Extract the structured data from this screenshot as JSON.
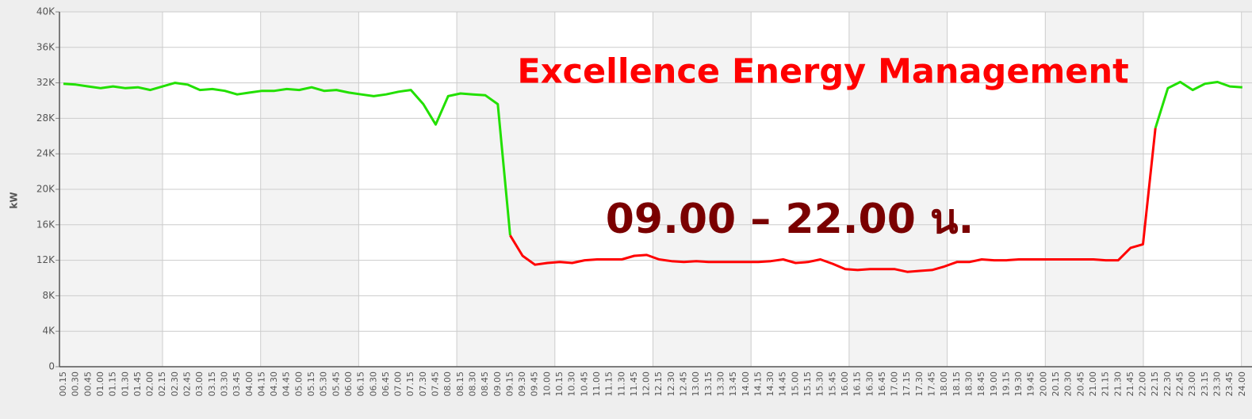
{
  "chart_data": {
    "type": "line",
    "y_label": "kW",
    "annotations": [
      "Excellence Energy Management",
      "09.00 – 22.00 น."
    ],
    "categories": [
      "00.15",
      "00.30",
      "00.45",
      "01.00",
      "01.15",
      "01.30",
      "01.45",
      "02.00",
      "02.15",
      "02.30",
      "02.45",
      "03.00",
      "03.15",
      "03.30",
      "03.45",
      "04.00",
      "04.15",
      "04.30",
      "04.45",
      "05.00",
      "05.15",
      "05.30",
      "05.45",
      "06.00",
      "06.15",
      "06.30",
      "06.45",
      "07.00",
      "07.15",
      "07.30",
      "07.45",
      "08.00",
      "08.15",
      "08.30",
      "08.45",
      "09.00",
      "09.15",
      "09.30",
      "09.45",
      "10.00",
      "10.15",
      "10.30",
      "10.45",
      "11.00",
      "11.15",
      "11.30",
      "11.45",
      "12.00",
      "12.15",
      "12.30",
      "12.45",
      "13.00",
      "13.15",
      "13.30",
      "13.45",
      "14.00",
      "14.15",
      "14.30",
      "14.45",
      "15.00",
      "15.15",
      "15.30",
      "15.45",
      "16.00",
      "16.15",
      "16.30",
      "16.45",
      "17.00",
      "17.15",
      "17.30",
      "17.45",
      "18.00",
      "18.15",
      "18.30",
      "18.45",
      "19.00",
      "19.15",
      "19.30",
      "19.45",
      "20.00",
      "20.15",
      "20.30",
      "20.45",
      "21.00",
      "21.15",
      "21.30",
      "21.45",
      "22.00",
      "22.15",
      "22.30",
      "22.45",
      "23.00",
      "23.15",
      "23.30",
      "23.45",
      "24.00"
    ],
    "series": [
      {
        "color": "#22e000",
        "values": [
          31900,
          31800,
          31600,
          31400,
          31600,
          31400,
          31500,
          31200,
          31600,
          32000,
          31800,
          31200,
          31300,
          31100,
          30700,
          30900,
          31100,
          31100,
          31300,
          31200,
          31500,
          31100,
          31200,
          30900,
          30700,
          30500,
          30700,
          31000,
          31200,
          29600,
          27300,
          30500,
          30800,
          30700,
          30600,
          29600,
          14800,
          null,
          null,
          null,
          null,
          null,
          null,
          null,
          null,
          null,
          null,
          null,
          null,
          null,
          null,
          null,
          null,
          null,
          null,
          null,
          null,
          null,
          null,
          null,
          null,
          null,
          null,
          null,
          null,
          null,
          null,
          null,
          null,
          null,
          null,
          null,
          null,
          null,
          null,
          null,
          null,
          null,
          null,
          null,
          null,
          null,
          null,
          null,
          null,
          null,
          null,
          null,
          26900,
          31400,
          32100,
          31200,
          31900,
          32100,
          31600,
          31500
        ]
      },
      {
        "color": "#ff0000",
        "values": [
          null,
          null,
          null,
          null,
          null,
          null,
          null,
          null,
          null,
          null,
          null,
          null,
          null,
          null,
          null,
          null,
          null,
          null,
          null,
          null,
          null,
          null,
          null,
          null,
          null,
          null,
          null,
          null,
          null,
          null,
          null,
          null,
          null,
          null,
          null,
          null,
          14800,
          12500,
          11500,
          11700,
          11800,
          11700,
          12000,
          12100,
          12100,
          12100,
          12500,
          12600,
          12100,
          11900,
          11800,
          11900,
          11800,
          11800,
          11800,
          11800,
          11800,
          11900,
          12100,
          11700,
          11800,
          12100,
          11600,
          11000,
          10900,
          11000,
          11000,
          11000,
          10700,
          10800,
          10900,
          11300,
          11800,
          11800,
          12100,
          12000,
          12000,
          12100,
          12100,
          12100,
          12100,
          12100,
          12100,
          12100,
          12000,
          12000,
          13400,
          13800,
          26900,
          null,
          null,
          null,
          null,
          null,
          null,
          null
        ]
      }
    ],
    "ylim": [
      0,
      40000
    ],
    "yticks": [
      0,
      {
        "value": 4000,
        "label": "4K"
      },
      {
        "value": 8000,
        "label": "8K"
      },
      {
        "value": 12000,
        "label": "12K"
      },
      {
        "value": 16000,
        "label": "16K"
      },
      {
        "value": 20000,
        "label": "20K"
      },
      {
        "value": 24000,
        "label": "24K"
      },
      {
        "value": 28000,
        "label": "28K"
      },
      {
        "value": 32000,
        "label": "32K"
      },
      {
        "value": 36000,
        "label": "36K"
      },
      {
        "value": 40000,
        "label": "40K"
      }
    ],
    "grid": true
  }
}
